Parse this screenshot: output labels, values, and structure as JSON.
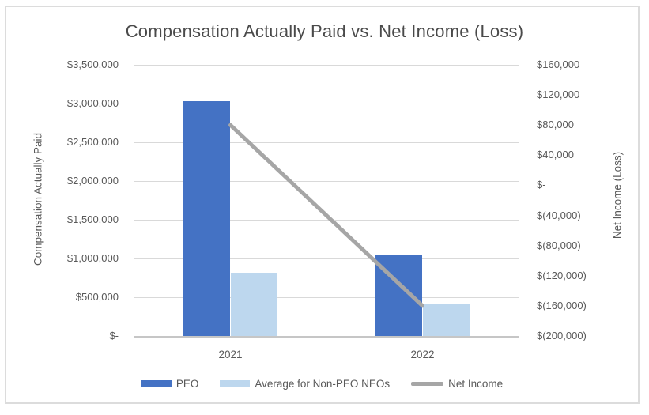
{
  "chart_data": {
    "type": "bar+line combo",
    "title": "Compensation Actually Paid vs. Net Income (Loss)",
    "categories": [
      "2021",
      "2022"
    ],
    "series": [
      {
        "name": "PEO",
        "type": "bar",
        "axis": "left",
        "color": "#4472C4",
        "values": [
          3030000,
          1040000
        ]
      },
      {
        "name": "Average for Non-PEO NEOs",
        "type": "bar",
        "axis": "left",
        "color": "#BDD7EE",
        "values": [
          820000,
          410000
        ]
      },
      {
        "name": "Net Income",
        "type": "line",
        "axis": "right",
        "color": "#A6A6A6",
        "values": [
          80000,
          -160000
        ]
      }
    ],
    "left_axis": {
      "label": "Compensation Actually Paid",
      "min": 0,
      "max": 3500000,
      "ticks": [
        "$3,500,000",
        "$3,000,000",
        "$2,500,000",
        "$2,000,000",
        "$1,500,000",
        "$1,000,000",
        "$500,000",
        "$-"
      ]
    },
    "right_axis": {
      "label": "Net Income (Loss)",
      "min": -200000,
      "max": 160000,
      "ticks": [
        "$160,000",
        "$120,000",
        "$80,000",
        "$40,000",
        "$-",
        "$(40,000)",
        "$(80,000)",
        "$(120,000)",
        "$(160,000)",
        "$(200,000)"
      ]
    },
    "grid": true,
    "legend_position": "bottom",
    "colors": {
      "gridline": "#D9D9D9",
      "axis_line": "#C6C6C6",
      "text": "#595959",
      "title_text": "#4A4A4A",
      "frame_border": "#DCDCDC"
    }
  }
}
